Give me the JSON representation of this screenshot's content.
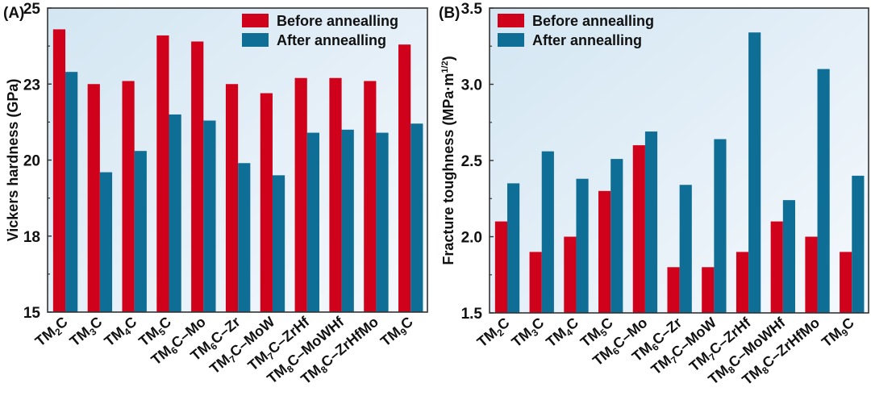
{
  "chart_data": [
    {
      "panel": "(A)",
      "type": "bar",
      "title": "",
      "xlabel": "",
      "ylabel": "Vickers hardness (GPa)",
      "ylim": [
        15,
        25
      ],
      "yticks": [
        15,
        17.5,
        20,
        22.5,
        25
      ],
      "ytick_labels": [
        "15",
        "18",
        "20",
        "23",
        "25"
      ],
      "grid": false,
      "legend_position": "top-right",
      "categories": [
        {
          "base": "TM",
          "sub": "2",
          "suffix": "C"
        },
        {
          "base": "TM",
          "sub": "3",
          "suffix": "C"
        },
        {
          "base": "TM",
          "sub": "4",
          "suffix": "C"
        },
        {
          "base": "TM",
          "sub": "5",
          "suffix": "C"
        },
        {
          "base": "TM",
          "sub": "6",
          "suffix": "C–Mo"
        },
        {
          "base": "TM",
          "sub": "6",
          "suffix": "C–Zr"
        },
        {
          "base": "TM",
          "sub": "7",
          "suffix": "C–MoW"
        },
        {
          "base": "TM",
          "sub": "7",
          "suffix": "C–ZrHf"
        },
        {
          "base": "TM",
          "sub": "8",
          "suffix": "C–MoWHf"
        },
        {
          "base": "TM",
          "sub": "8",
          "suffix": "C–ZrHfMo"
        },
        {
          "base": "TM",
          "sub": "9",
          "suffix": "C"
        }
      ],
      "series": [
        {
          "name": "Before annealling",
          "color": "#d0021b",
          "values": [
            24.3,
            22.5,
            22.6,
            24.1,
            23.9,
            22.5,
            22.2,
            22.7,
            22.7,
            22.6,
            23.8
          ]
        },
        {
          "name": "After annealling",
          "color": "#0e6e96",
          "values": [
            22.9,
            19.6,
            20.3,
            21.5,
            21.3,
            19.9,
            19.5,
            20.9,
            21.0,
            20.9,
            21.2
          ]
        }
      ]
    },
    {
      "panel": "(B)",
      "type": "bar",
      "title": "",
      "xlabel": "",
      "ylabel": "Fracture toughness (MPa·m",
      "ylabel_sup": "1/2",
      "ylabel_close": ")",
      "ylim": [
        1.5,
        3.5
      ],
      "yticks": [
        1.5,
        2.0,
        2.5,
        3.0,
        3.5
      ],
      "ytick_labels": [
        "1.5",
        "2.0",
        "2.5",
        "3.0",
        "3.5"
      ],
      "grid": false,
      "legend_position": "top-left",
      "categories": [
        {
          "base": "TM",
          "sub": "2",
          "suffix": "C"
        },
        {
          "base": "TM",
          "sub": "3",
          "suffix": "C"
        },
        {
          "base": "TM",
          "sub": "4",
          "suffix": "C"
        },
        {
          "base": "TM",
          "sub": "5",
          "suffix": "C"
        },
        {
          "base": "TM",
          "sub": "6",
          "suffix": "C–Mo"
        },
        {
          "base": "TM",
          "sub": "6",
          "suffix": "C–Zr"
        },
        {
          "base": "TM",
          "sub": "7",
          "suffix": "C–MoW"
        },
        {
          "base": "TM",
          "sub": "7",
          "suffix": "C–ZrHf"
        },
        {
          "base": "TM",
          "sub": "8",
          "suffix": "C–MoWHf"
        },
        {
          "base": "TM",
          "sub": "8",
          "suffix": "C–ZrHfMo"
        },
        {
          "base": "TM",
          "sub": "9",
          "suffix": "C"
        }
      ],
      "series": [
        {
          "name": "Before annealling",
          "color": "#d0021b",
          "values": [
            2.1,
            1.9,
            2.0,
            2.3,
            2.6,
            1.8,
            1.8,
            1.9,
            2.1,
            2.0,
            1.9
          ]
        },
        {
          "name": "After annealling",
          "color": "#0e6e96",
          "values": [
            2.35,
            2.56,
            2.38,
            2.51,
            2.69,
            2.34,
            2.64,
            3.34,
            2.24,
            3.1,
            2.4
          ]
        }
      ]
    }
  ]
}
